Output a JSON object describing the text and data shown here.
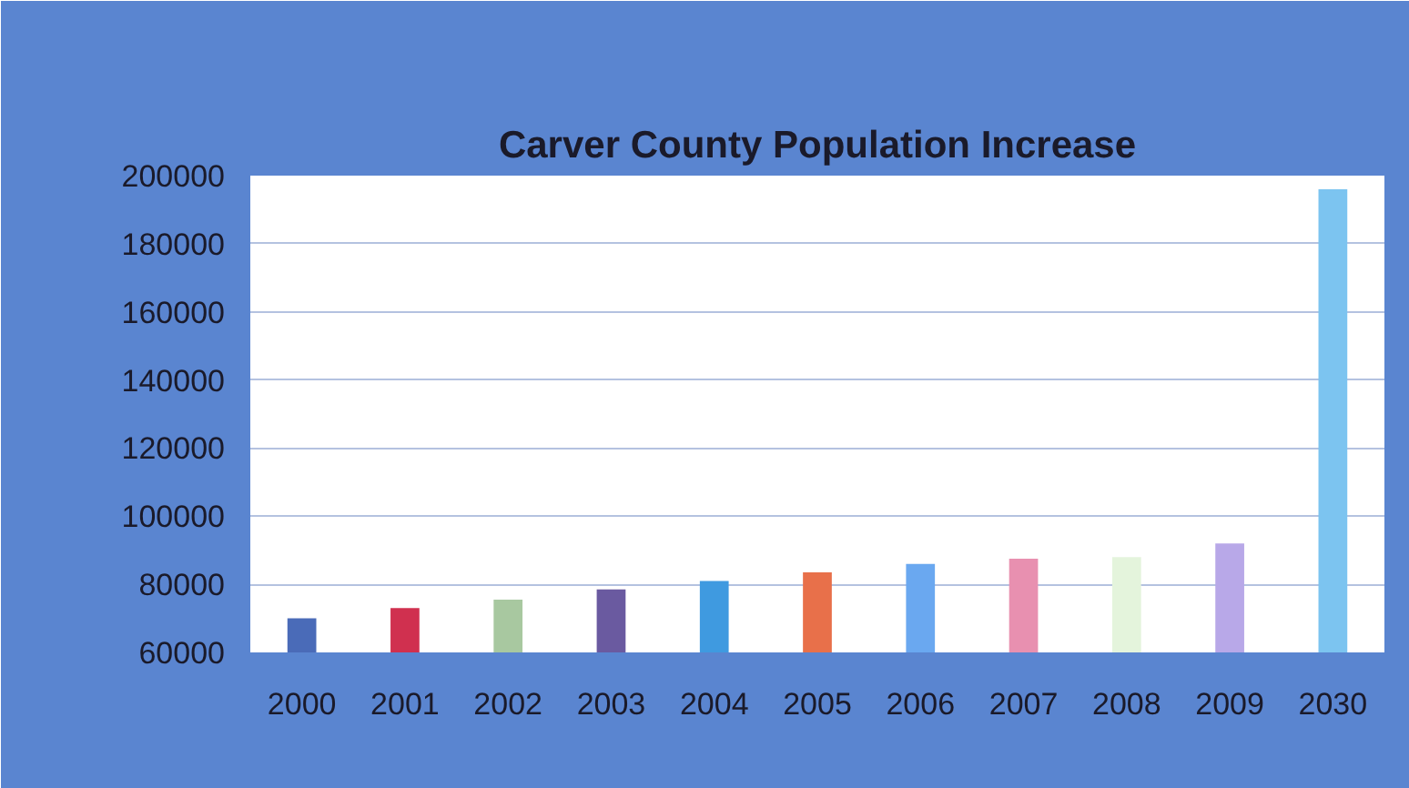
{
  "chart_data": {
    "type": "bar",
    "title": "Carver County Population Increase",
    "categories": [
      "2000",
      "2001",
      "2002",
      "2003",
      "2004",
      "2005",
      "2006",
      "2007",
      "2008",
      "2009",
      "2030"
    ],
    "values": [
      70000,
      73000,
      75500,
      78500,
      81000,
      83500,
      86000,
      87500,
      88000,
      92000,
      196000
    ],
    "colors": [
      "#4a6bb8",
      "#d0304f",
      "#a8c8a0",
      "#6a5aa0",
      "#3f9ae0",
      "#e8704a",
      "#6aa8f0",
      "#e890b0",
      "#e4f4dc",
      "#b8a8e8",
      "#7cc4f0"
    ],
    "ylim": [
      60000,
      200000
    ],
    "yticks": [
      60000,
      80000,
      100000,
      120000,
      140000,
      160000,
      180000,
      200000
    ],
    "grid": "y"
  }
}
